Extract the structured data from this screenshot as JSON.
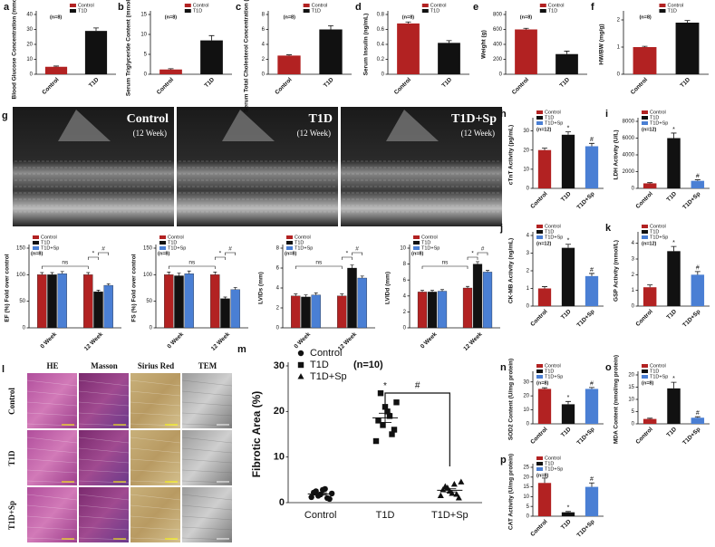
{
  "images": [
    {
      "panel": "g",
      "labels": [
        {
          "title": "Control",
          "subtitle": "(12 Week)"
        },
        {
          "title": "T1D",
          "subtitle": "(12 Week)"
        },
        {
          "title": "T1D+Sp",
          "subtitle": "(12 Week)"
        }
      ]
    },
    {
      "panel": "l",
      "columns": [
        "HE",
        "Masson",
        "Sirius Red",
        "TEM"
      ],
      "rows": [
        "Control",
        "T1D",
        "T1D+Sp"
      ]
    }
  ],
  "chart_data": [
    {
      "type": "bar",
      "panel": "a",
      "ylabel": "Blood Glucose Concentration (mmol/L)",
      "note": "(n=8)",
      "categories": [
        "Control",
        "T1D"
      ],
      "colors": [
        "#b22222",
        "#111111"
      ],
      "values": [
        5,
        29
      ],
      "errors": [
        0.5,
        2
      ],
      "ylim": [
        0,
        40
      ],
      "yticks": [
        0,
        10,
        20,
        30,
        40
      ]
    },
    {
      "type": "bar",
      "panel": "b",
      "ylabel": "Serum Triglyceride Content (mmol/L)",
      "note": "(n=8)",
      "categories": [
        "Control",
        "T1D"
      ],
      "colors": [
        "#b22222",
        "#111111"
      ],
      "values": [
        1.2,
        8.5
      ],
      "errors": [
        0.2,
        1.2
      ],
      "ylim": [
        0,
        15
      ],
      "yticks": [
        0,
        5,
        10,
        15
      ]
    },
    {
      "type": "bar",
      "panel": "c",
      "ylabel": "Serum Total Cholesterol Concentration (mmol/L)",
      "note": "(n=8)",
      "categories": [
        "Control",
        "T1D"
      ],
      "colors": [
        "#b22222",
        "#111111"
      ],
      "values": [
        2.5,
        6
      ],
      "errors": [
        0.1,
        0.5
      ],
      "ylim": [
        0,
        8
      ],
      "yticks": [
        0,
        2,
        4,
        6,
        8
      ]
    },
    {
      "type": "bar",
      "panel": "d",
      "ylabel": "Serum Insulin (ng/mL)",
      "note": "(n=8)",
      "categories": [
        "Control",
        "T1D"
      ],
      "colors": [
        "#b22222",
        "#111111"
      ],
      "values": [
        0.68,
        0.42
      ],
      "errors": [
        0.02,
        0.03
      ],
      "ylim": [
        0,
        0.8
      ],
      "yticks": [
        0,
        0.2,
        0.4,
        0.6,
        0.8
      ]
    },
    {
      "type": "bar",
      "panel": "e",
      "ylabel": "Weight (g)",
      "note": "(n=8)",
      "categories": [
        "Control",
        "T1D"
      ],
      "colors": [
        "#b22222",
        "#111111"
      ],
      "values": [
        600,
        270
      ],
      "errors": [
        15,
        40
      ],
      "ylim": [
        0,
        800
      ],
      "yticks": [
        0,
        200,
        400,
        600,
        800
      ]
    },
    {
      "type": "bar",
      "panel": "f",
      "ylabel": "HW/BW (mg/g)",
      "note": "(n=8)",
      "categories": [
        "Control",
        "T1D"
      ],
      "colors": [
        "#b22222",
        "#111111"
      ],
      "values": [
        1.0,
        1.9
      ],
      "errors": [
        0.03,
        0.08
      ],
      "ylim": [
        0,
        2.2
      ],
      "yticks": [
        0,
        1,
        2
      ]
    },
    {
      "type": "bar",
      "panel": "h",
      "ylabel": "cTnT Activity (pg/mL)",
      "note": "(n=12)",
      "categories": [
        "Control",
        "T1D",
        "T1D+Sp"
      ],
      "colors": [
        "#b22222",
        "#111111",
        "#4a7fd4"
      ],
      "values": [
        20,
        28,
        22
      ],
      "errors": [
        1,
        1.5,
        1.5
      ],
      "sig": [
        null,
        "*",
        "#"
      ],
      "ylim": [
        0,
        35
      ],
      "yticks": [
        0,
        10,
        20,
        30
      ]
    },
    {
      "type": "bar",
      "panel": "i",
      "ylabel": "LDH Activity (U/L)",
      "note": "(n=12)",
      "categories": [
        "Control",
        "T1D",
        "T1D+Sp"
      ],
      "colors": [
        "#b22222",
        "#111111",
        "#4a7fd4"
      ],
      "values": [
        600,
        6000,
        900
      ],
      "errors": [
        80,
        600,
        120
      ],
      "sig": [
        null,
        "*",
        "#"
      ],
      "ylim": [
        0,
        8000
      ],
      "yticks": [
        0,
        2000,
        4000,
        6000,
        8000
      ]
    },
    {
      "type": "grouped_bar",
      "ylabel": "EF (%) Fold over control",
      "note": "(n=8)",
      "categories": [
        "0 Week",
        "12 Week"
      ],
      "series": [
        {
          "name": "Control",
          "color": "#b22222",
          "values": [
            100,
            100
          ],
          "errors": [
            4,
            4
          ]
        },
        {
          "name": "T1D",
          "color": "#111111",
          "values": [
            100,
            68
          ],
          "errors": [
            4,
            3
          ]
        },
        {
          "name": "T1D+Sp",
          "color": "#4a7fd4",
          "values": [
            102,
            80
          ],
          "errors": [
            4,
            3
          ]
        }
      ],
      "annotations": [
        "ns",
        "*",
        "#"
      ],
      "ylim": [
        0,
        150
      ],
      "yticks": [
        0,
        50,
        100,
        150
      ]
    },
    {
      "type": "grouped_bar",
      "ylabel": "FS (%) Fold over control",
      "note": "(n=8)",
      "categories": [
        "0 Week",
        "12 Week"
      ],
      "series": [
        {
          "name": "Control",
          "color": "#b22222",
          "values": [
            100,
            100
          ],
          "errors": [
            5,
            5
          ]
        },
        {
          "name": "T1D",
          "color": "#111111",
          "values": [
            98,
            55
          ],
          "errors": [
            5,
            3
          ]
        },
        {
          "name": "T1D+Sp",
          "color": "#4a7fd4",
          "values": [
            102,
            72
          ],
          "errors": [
            5,
            4
          ]
        }
      ],
      "annotations": [
        "ns",
        "*",
        "#"
      ],
      "ylim": [
        0,
        150
      ],
      "yticks": [
        0,
        50,
        100,
        150
      ]
    },
    {
      "type": "grouped_bar",
      "ylabel": "LVIDs (mm)",
      "note": "(n=8)",
      "categories": [
        "0 Week",
        "12 Week"
      ],
      "series": [
        {
          "name": "Control",
          "color": "#b22222",
          "values": [
            3.2,
            3.2
          ],
          "errors": [
            0.2,
            0.2
          ]
        },
        {
          "name": "T1D",
          "color": "#111111",
          "values": [
            3.1,
            6
          ],
          "errors": [
            0.2,
            0.3
          ]
        },
        {
          "name": "T1D+Sp",
          "color": "#4a7fd4",
          "values": [
            3.3,
            5
          ],
          "errors": [
            0.2,
            0.2
          ]
        }
      ],
      "annotations": [
        "ns",
        "*",
        "#"
      ],
      "ylim": [
        0,
        8
      ],
      "yticks": [
        0,
        2,
        4,
        6,
        8
      ]
    },
    {
      "type": "grouped_bar",
      "ylabel": "LVIDd (mm)",
      "note": "(n=8)",
      "categories": [
        "0 Week",
        "12 Week"
      ],
      "series": [
        {
          "name": "Control",
          "color": "#b22222",
          "values": [
            4.5,
            5
          ],
          "errors": [
            0.2,
            0.2
          ]
        },
        {
          "name": "T1D",
          "color": "#111111",
          "values": [
            4.5,
            8
          ],
          "errors": [
            0.2,
            0.3
          ]
        },
        {
          "name": "T1D+Sp",
          "color": "#4a7fd4",
          "values": [
            4.6,
            7
          ],
          "errors": [
            0.2,
            0.2
          ]
        }
      ],
      "annotations": [
        "ns",
        "*",
        "#"
      ],
      "ylim": [
        0,
        10
      ],
      "yticks": [
        0,
        2,
        4,
        6,
        8,
        10
      ]
    },
    {
      "type": "bar",
      "panel": "j",
      "ylabel": "CK-MB Activity (ng/mL)",
      "note": "(n=12)",
      "categories": [
        "Control",
        "T1D",
        "T1D+Sp"
      ],
      "colors": [
        "#b22222",
        "#111111",
        "#4a7fd4"
      ],
      "values": [
        1.0,
        3.3,
        1.7
      ],
      "errors": [
        0.1,
        0.2,
        0.15
      ],
      "sig": [
        null,
        "*",
        "#"
      ],
      "ylim": [
        0,
        4
      ],
      "yticks": [
        0,
        1,
        2,
        3,
        4
      ]
    },
    {
      "type": "bar",
      "panel": "k",
      "ylabel": "GSP Activity (mmol/L)",
      "note": "(n=12)",
      "categories": [
        "Control",
        "T1D",
        "T1D+Sp"
      ],
      "colors": [
        "#b22222",
        "#111111",
        "#4a7fd4"
      ],
      "values": [
        1.2,
        3.5,
        2.0
      ],
      "errors": [
        0.15,
        0.3,
        0.2
      ],
      "sig": [
        null,
        "*",
        "#"
      ],
      "ylim": [
        0,
        4.5
      ],
      "yticks": [
        0,
        1,
        2,
        3,
        4
      ]
    },
    {
      "type": "strip",
      "panel": "m",
      "ylabel": "Fibrotic Area (%)",
      "note": "(n=10)",
      "categories": [
        "Control",
        "T1D",
        "T1D+Sp"
      ],
      "series": [
        {
          "name": "Control",
          "marker": "circle",
          "values": [
            1.2,
            2.5,
            1.8,
            3.0,
            0.8,
            2.2,
            1.5,
            2.8,
            1.0,
            2.0
          ],
          "mean": 1.9,
          "error": 0.25
        },
        {
          "name": "T1D",
          "marker": "square",
          "values": [
            13.5,
            24,
            21,
            19,
            16,
            18,
            17,
            20,
            15,
            22
          ],
          "mean": 18.6,
          "error": 1.0
        },
        {
          "name": "T1D+Sp",
          "marker": "triangle",
          "values": [
            1.5,
            3.5,
            2.5,
            4.0,
            1.0,
            2.8,
            3.2,
            2.0,
            1.8,
            4.5
          ],
          "mean": 2.7,
          "error": 0.35
        }
      ],
      "annotations": [
        "*",
        "#"
      ],
      "ylim": [
        0,
        30
      ],
      "yticks": [
        0,
        10,
        20,
        30
      ]
    },
    {
      "type": "bar",
      "panel": "n",
      "ylabel": "SOD2 Content (U/mg protein)",
      "note": "(n=8)",
      "categories": [
        "Control",
        "T1D",
        "T1D+Sp"
      ],
      "colors": [
        "#b22222",
        "#111111",
        "#4a7fd4"
      ],
      "values": [
        25,
        14,
        25
      ],
      "errors": [
        0.8,
        2,
        1
      ],
      "sig": [
        null,
        "*",
        "#"
      ],
      "ylim": [
        0,
        35
      ],
      "yticks": [
        0,
        10,
        20,
        30
      ]
    },
    {
      "type": "bar",
      "panel": "o",
      "ylabel": "MDA Content (nmol/mg protein)",
      "note": "(n=8)",
      "categories": [
        "Control",
        "T1D",
        "T1D+Sp"
      ],
      "colors": [
        "#b22222",
        "#111111",
        "#4a7fd4"
      ],
      "values": [
        2,
        14.5,
        2.5
      ],
      "errors": [
        0.3,
        2.5,
        0.4
      ],
      "sig": [
        null,
        "*",
        "#"
      ],
      "ylim": [
        0,
        20
      ],
      "yticks": [
        0,
        5,
        10,
        15,
        20
      ]
    },
    {
      "type": "bar",
      "panel": "p",
      "ylabel": "CAT Activity (U/mg protein)",
      "note": "(n=8)",
      "categories": [
        "Control",
        "T1D",
        "T1D+Sp"
      ],
      "colors": [
        "#b22222",
        "#111111",
        "#4a7fd4"
      ],
      "values": [
        17,
        2,
        15
      ],
      "errors": [
        2.5,
        0.4,
        2
      ],
      "sig": [
        null,
        "*",
        "#"
      ],
      "ylim": [
        0,
        25
      ],
      "yticks": [
        0,
        5,
        10,
        15,
        20,
        25
      ]
    }
  ]
}
